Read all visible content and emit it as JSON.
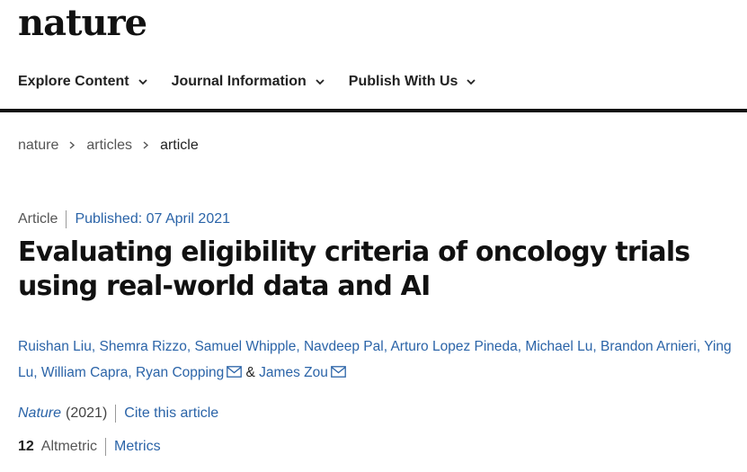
{
  "header": {
    "logo": "nature"
  },
  "nav": {
    "items": [
      {
        "label": "Explore Content"
      },
      {
        "label": "Journal Information"
      },
      {
        "label": "Publish With Us"
      }
    ]
  },
  "breadcrumb": {
    "items": [
      "nature",
      "articles",
      "article"
    ]
  },
  "article": {
    "type": "Article",
    "published": "Published: 07 April 2021",
    "title": "Evaluating eligibility criteria of oncology trials using real-world data and AI",
    "authors": [
      "Ruishan Liu",
      "Shemra Rizzo",
      "Samuel Whipple",
      "Navdeep Pal",
      "Arturo Lopez Pineda",
      "Michael Lu",
      "Brandon Arnieri",
      "Ying Lu",
      "William Capra",
      "Ryan Copping",
      "James Zou"
    ],
    "and_symbol": "&",
    "journal": "Nature",
    "year": "(2021)",
    "cite_label": "Cite this article",
    "altmetric_count": "12",
    "altmetric_label": "Altmetric",
    "metrics_label": "Metrics"
  },
  "colors": {
    "link": "#2b64a8",
    "text": "#222222",
    "rule": "#111111"
  },
  "icons": {
    "nav_dropdown": "chevron-down-icon",
    "breadcrumb_sep": "chevron-right-icon",
    "author_contact": "mail-icon"
  }
}
